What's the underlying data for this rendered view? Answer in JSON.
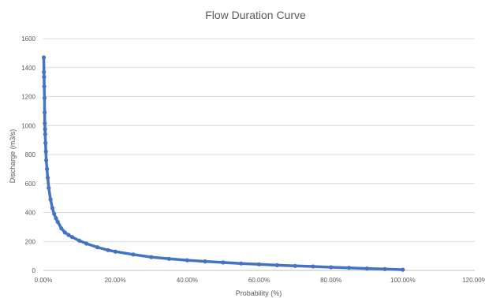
{
  "chart_data": {
    "type": "scatter",
    "title": "Flow Duration Curve",
    "xlabel": "Probability (%)",
    "ylabel": "Discharge (m3/s)",
    "xlim": [
      0,
      120
    ],
    "ylim": [
      0,
      1600
    ],
    "x_ticks": [
      "0.00%",
      "20.00%",
      "40.00%",
      "60.00%",
      "80.00%",
      "100.00%",
      "120.00%"
    ],
    "y_ticks": [
      "0",
      "200",
      "400",
      "600",
      "800",
      "1000",
      "1200",
      "1400",
      "1600"
    ],
    "grid": true,
    "legend": "none",
    "series": [
      {
        "color": "#4472c4",
        "marker": "circle",
        "line": true,
        "x": [
          0.1,
          0.15,
          0.2,
          0.25,
          0.3,
          0.35,
          0.4,
          0.45,
          0.5,
          0.6,
          0.7,
          0.8,
          1,
          1.2,
          1.5,
          2,
          2.5,
          3,
          3.5,
          4,
          5,
          6,
          7,
          8,
          10,
          12,
          15,
          18,
          20,
          25,
          30,
          35,
          40,
          45,
          50,
          55,
          60,
          65,
          70,
          75,
          80,
          85,
          90,
          95,
          100
        ],
        "y": [
          1470,
          1370,
          1335,
          1270,
          1190,
          1090,
          1015,
          975,
          940,
          880,
          820,
          760,
          700,
          640,
          570,
          490,
          430,
          390,
          360,
          335,
          290,
          262,
          245,
          230,
          205,
          185,
          160,
          140,
          130,
          110,
          92,
          80,
          70,
          62,
          55,
          48,
          42,
          36,
          31,
          27,
          22,
          18,
          13,
          9,
          5
        ]
      }
    ]
  }
}
